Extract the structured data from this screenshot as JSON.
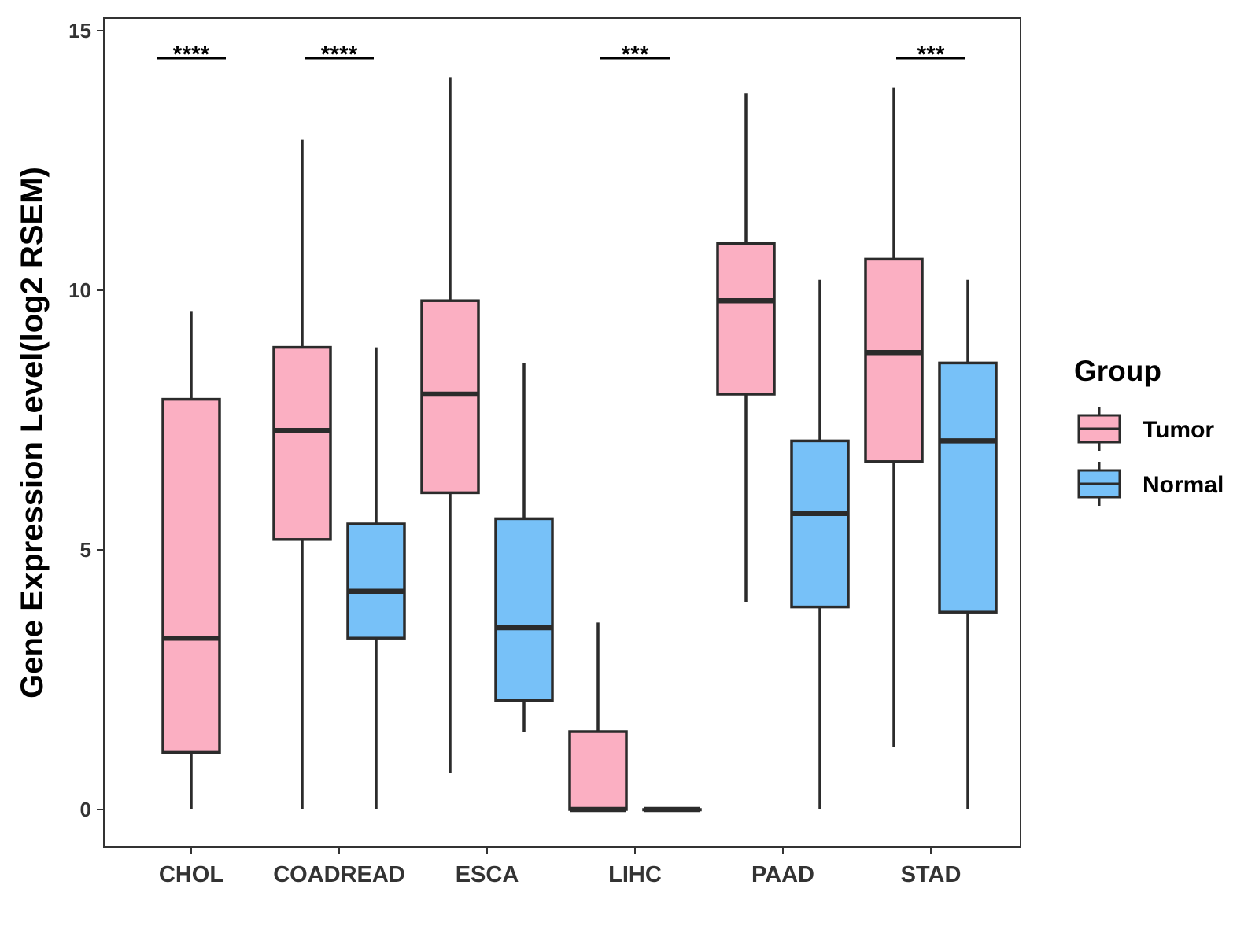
{
  "chart_data": {
    "type": "boxplot",
    "title": "",
    "xlabel": "",
    "ylabel": "Gene Expression Level(log2 RSEM)",
    "ylim": [
      -0.7,
      15.3
    ],
    "yticks": [
      0,
      5,
      10,
      15
    ],
    "ytick_labels": [
      "0",
      "5",
      "10",
      "15"
    ],
    "grid": false,
    "categories": [
      "CHOL",
      "COADREAD",
      "ESCA",
      "LIHC",
      "PAAD",
      "STAD"
    ],
    "series": [
      {
        "name": "Tumor",
        "color": "#FBAFC2",
        "boxes": [
          {
            "min": 0.0,
            "q1": 1.1,
            "median": 3.3,
            "q3": 7.9,
            "max": 9.6
          },
          {
            "min": 0.0,
            "q1": 5.2,
            "median": 7.3,
            "q3": 8.9,
            "max": 12.9
          },
          {
            "min": 0.7,
            "q1": 6.1,
            "median": 8.0,
            "q3": 9.8,
            "max": 14.1
          },
          {
            "min": 0.0,
            "q1": 0.0,
            "median": 0.0,
            "q3": 1.5,
            "max": 3.6
          },
          {
            "min": 4.0,
            "q1": 8.0,
            "median": 9.8,
            "q3": 10.9,
            "max": 13.8
          },
          {
            "min": 1.2,
            "q1": 6.7,
            "median": 8.8,
            "q3": 10.6,
            "max": 13.9
          }
        ]
      },
      {
        "name": "Normal",
        "color": "#77C1F8",
        "boxes": [
          null,
          {
            "min": 0.0,
            "q1": 3.3,
            "median": 4.2,
            "q3": 5.5,
            "max": 8.9
          },
          {
            "min": 1.5,
            "q1": 2.1,
            "median": 3.5,
            "q3": 5.6,
            "max": 8.6
          },
          {
            "min": 0.0,
            "q1": 0.0,
            "median": 0.0,
            "q3": 0.0,
            "max": 0.0
          },
          {
            "min": 0.0,
            "q1": 3.9,
            "median": 5.7,
            "q3": 7.1,
            "max": 10.2
          },
          {
            "min": 0.0,
            "q1": 3.8,
            "median": 7.1,
            "q3": 8.6,
            "max": 10.2
          }
        ]
      }
    ],
    "significance": [
      "****",
      "****",
      "",
      "***",
      "",
      "***"
    ],
    "legend": {
      "title": "Group",
      "position": "right",
      "entries": [
        "Tumor",
        "Normal"
      ]
    }
  },
  "colors": {
    "tumor": "#FBAFC2",
    "normal": "#77C1F8",
    "stroke": "#2b2b2b",
    "axis": "#333333"
  }
}
